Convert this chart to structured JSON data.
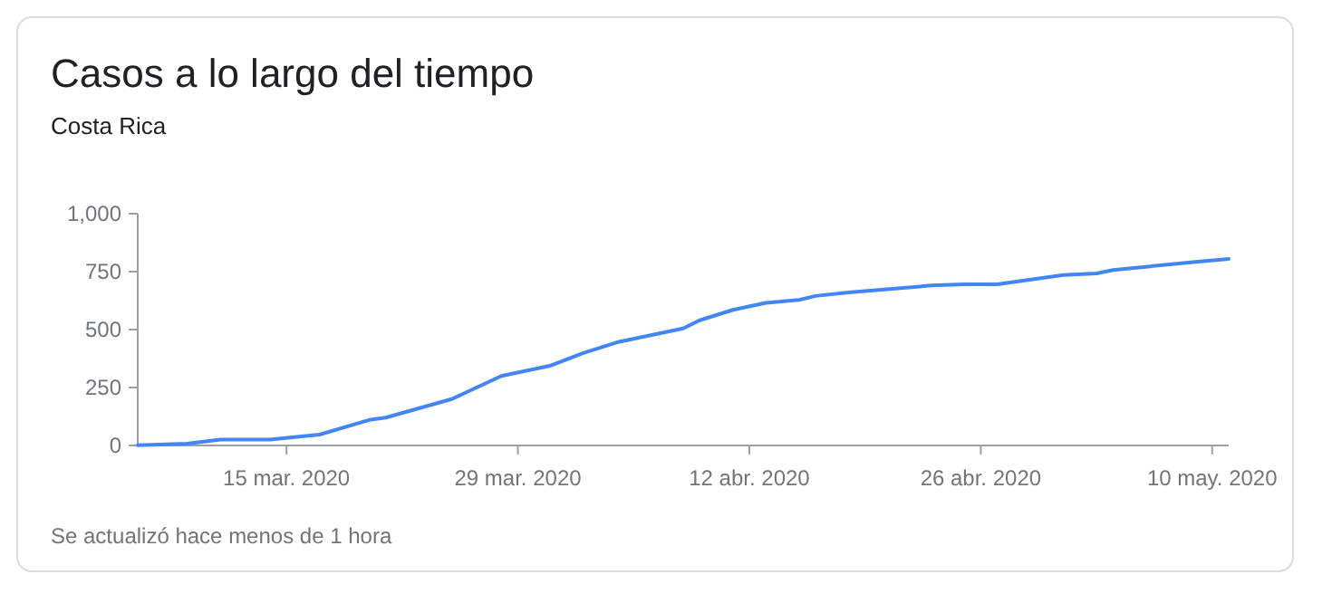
{
  "chart_data": {
    "type": "line",
    "title": "Casos a lo largo del tiempo",
    "subtitle": "Costa Rica",
    "annotations": [
      "Se actualizó hace menos de 1 hora"
    ],
    "x": [
      "2020-03-06",
      "2020-03-09",
      "2020-03-11",
      "2020-03-14",
      "2020-03-17",
      "2020-03-20",
      "2020-03-21",
      "2020-03-25",
      "2020-03-28",
      "2020-03-31",
      "2020-04-02",
      "2020-04-04",
      "2020-04-08",
      "2020-04-09",
      "2020-04-11",
      "2020-04-13",
      "2020-04-15",
      "2020-04-16",
      "2020-04-18",
      "2020-04-23",
      "2020-04-25",
      "2020-04-27",
      "2020-05-01",
      "2020-05-03",
      "2020-05-04",
      "2020-05-09",
      "2020-05-11"
    ],
    "series": [
      {
        "color": "#4285f4",
        "values": [
          1,
          8,
          25,
          25,
          47,
          110,
          120,
          200,
          300,
          345,
          400,
          445,
          505,
          540,
          585,
          615,
          628,
          645,
          660,
          690,
          695,
          695,
          735,
          742,
          757,
          792,
          805
        ]
      }
    ],
    "xlim": [
      "2020-03-06",
      "2020-05-11"
    ],
    "xticks": [
      {
        "value": "2020-03-15",
        "label": "15 mar. 2020"
      },
      {
        "value": "2020-03-29",
        "label": "29 mar. 2020"
      },
      {
        "value": "2020-04-12",
        "label": "12 abr. 2020"
      },
      {
        "value": "2020-04-26",
        "label": "26 abr. 2020"
      },
      {
        "value": "2020-05-10",
        "label": "10 may. 2020"
      }
    ],
    "ylim": [
      0,
      1000
    ],
    "yticks": [
      0,
      250,
      500,
      750,
      {
        "value": 1000,
        "label": "1,000"
      }
    ],
    "marker": "none",
    "line_style": "solid"
  }
}
